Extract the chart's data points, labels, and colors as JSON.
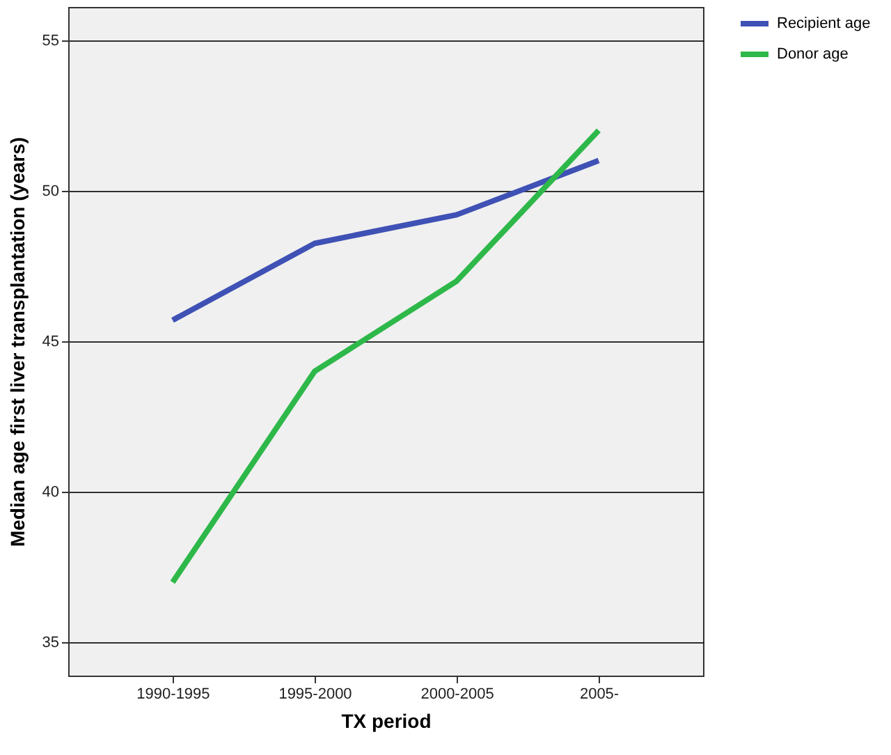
{
  "chart_data": {
    "type": "line",
    "xlabel": "TX period",
    "ylabel": "Median age first liver transplantation (years)",
    "categories": [
      "1990-1995",
      "1995-2000",
      "2000-2005",
      "2005-"
    ],
    "series": [
      {
        "name": "Recipient age",
        "color": "#3f51b5",
        "values": [
          45.7,
          48.25,
          49.2,
          51.0
        ]
      },
      {
        "name": "Donor age",
        "color": "#2eb84a",
        "values": [
          37.0,
          44.0,
          47.0,
          52.0
        ]
      }
    ],
    "ylim": [
      33.9,
      56.1
    ],
    "yticks": [
      35,
      40,
      45,
      50,
      55
    ],
    "grid": "y",
    "legend": "top right",
    "marker": "none",
    "line_style": "solid"
  }
}
